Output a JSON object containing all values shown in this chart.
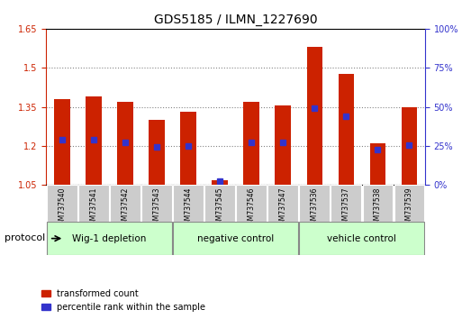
{
  "title": "GDS5185 / ILMN_1227690",
  "samples": [
    "GSM737540",
    "GSM737541",
    "GSM737542",
    "GSM737543",
    "GSM737544",
    "GSM737545",
    "GSM737546",
    "GSM737547",
    "GSM737536",
    "GSM737537",
    "GSM737538",
    "GSM737539"
  ],
  "groups": [
    {
      "label": "Wig-1 depletion",
      "indices": [
        0,
        1,
        2,
        3
      ]
    },
    {
      "label": "negative control",
      "indices": [
        4,
        5,
        6,
        7
      ]
    },
    {
      "label": "vehicle control",
      "indices": [
        8,
        9,
        10,
        11
      ]
    }
  ],
  "bar_bottom": [
    1.05,
    1.05,
    1.05,
    1.05,
    1.05,
    1.05,
    1.05,
    1.05,
    1.05,
    1.05,
    1.05,
    1.05
  ],
  "bar_top": [
    1.38,
    1.39,
    1.37,
    1.3,
    1.33,
    1.07,
    1.37,
    1.355,
    1.58,
    1.475,
    1.21,
    1.35
  ],
  "blue_pos": [
    1.225,
    1.225,
    1.215,
    1.195,
    1.2,
    1.065,
    1.215,
    1.215,
    1.345,
    1.315,
    1.185,
    1.205
  ],
  "ylim_left": [
    1.05,
    1.65
  ],
  "ylim_right": [
    0,
    100
  ],
  "yticks_left": [
    1.05,
    1.2,
    1.35,
    1.5,
    1.65
  ],
  "yticks_right": [
    0,
    25,
    50,
    75,
    100
  ],
  "ytick_labels_right": [
    "0%",
    "25%",
    "50%",
    "75%",
    "100%"
  ],
  "bar_color": "#cc2200",
  "blue_color": "#3333cc",
  "group_bg_color": "#ccffcc",
  "sample_bg_color": "#cccccc",
  "grid_color": "#333333",
  "left_tick_color": "#cc2200",
  "right_tick_color": "#3333cc",
  "protocol_label": "protocol",
  "legend_red_label": "transformed count",
  "legend_blue_label": "percentile rank within the sample"
}
